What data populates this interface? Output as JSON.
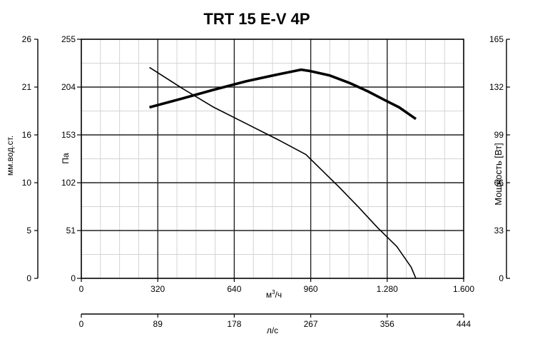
{
  "chart_data": {
    "type": "line",
    "title": "TRT 15 E-V 4P",
    "x_axis": {
      "label": "м³/ч",
      "label_base": "м",
      "label_sup": "3",
      "label_tail": "/ч",
      "ticks": [
        "0",
        "320",
        "640",
        "960",
        "1.280",
        "1.600"
      ],
      "range": [
        0,
        1600
      ]
    },
    "x2_axis": {
      "label": "л/с",
      "ticks": [
        "0",
        "89",
        "178",
        "267",
        "356",
        "444"
      ]
    },
    "y_axis": {
      "label": "Па",
      "ticks": [
        "0",
        "51",
        "102",
        "153",
        "204",
        "255"
      ],
      "range": [
        0,
        255
      ]
    },
    "y_left_axis": {
      "label": "мм.вод.ст.",
      "ticks": [
        "0",
        "5",
        "10",
        "16",
        "21",
        "26"
      ]
    },
    "y_right_axis": {
      "label": "Мощность [Вт]",
      "ticks": [
        "0",
        "33",
        "66",
        "99",
        "132",
        "165"
      ],
      "range": [
        0,
        165
      ]
    },
    "grid": true,
    "series": [
      {
        "role": "pressure",
        "axis": "left",
        "stroke_width": 1.6,
        "points": [
          [
            285,
            225
          ],
          [
            420,
            203
          ],
          [
            550,
            183
          ],
          [
            690,
            165
          ],
          [
            830,
            147
          ],
          [
            940,
            132
          ],
          [
            1000,
            117
          ],
          [
            1080,
            97
          ],
          [
            1160,
            76
          ],
          [
            1240,
            54
          ],
          [
            1320,
            34
          ],
          [
            1380,
            12
          ],
          [
            1400,
            0
          ]
        ]
      },
      {
        "role": "power",
        "axis": "right",
        "stroke_width": 3.6,
        "points": [
          [
            285,
            118
          ],
          [
            420,
            124
          ],
          [
            550,
            130
          ],
          [
            690,
            136
          ],
          [
            830,
            141
          ],
          [
            920,
            144
          ],
          [
            960,
            143
          ],
          [
            1040,
            140
          ],
          [
            1120,
            135
          ],
          [
            1200,
            129
          ],
          [
            1270,
            123
          ],
          [
            1330,
            118
          ],
          [
            1400,
            110
          ]
        ]
      }
    ]
  }
}
